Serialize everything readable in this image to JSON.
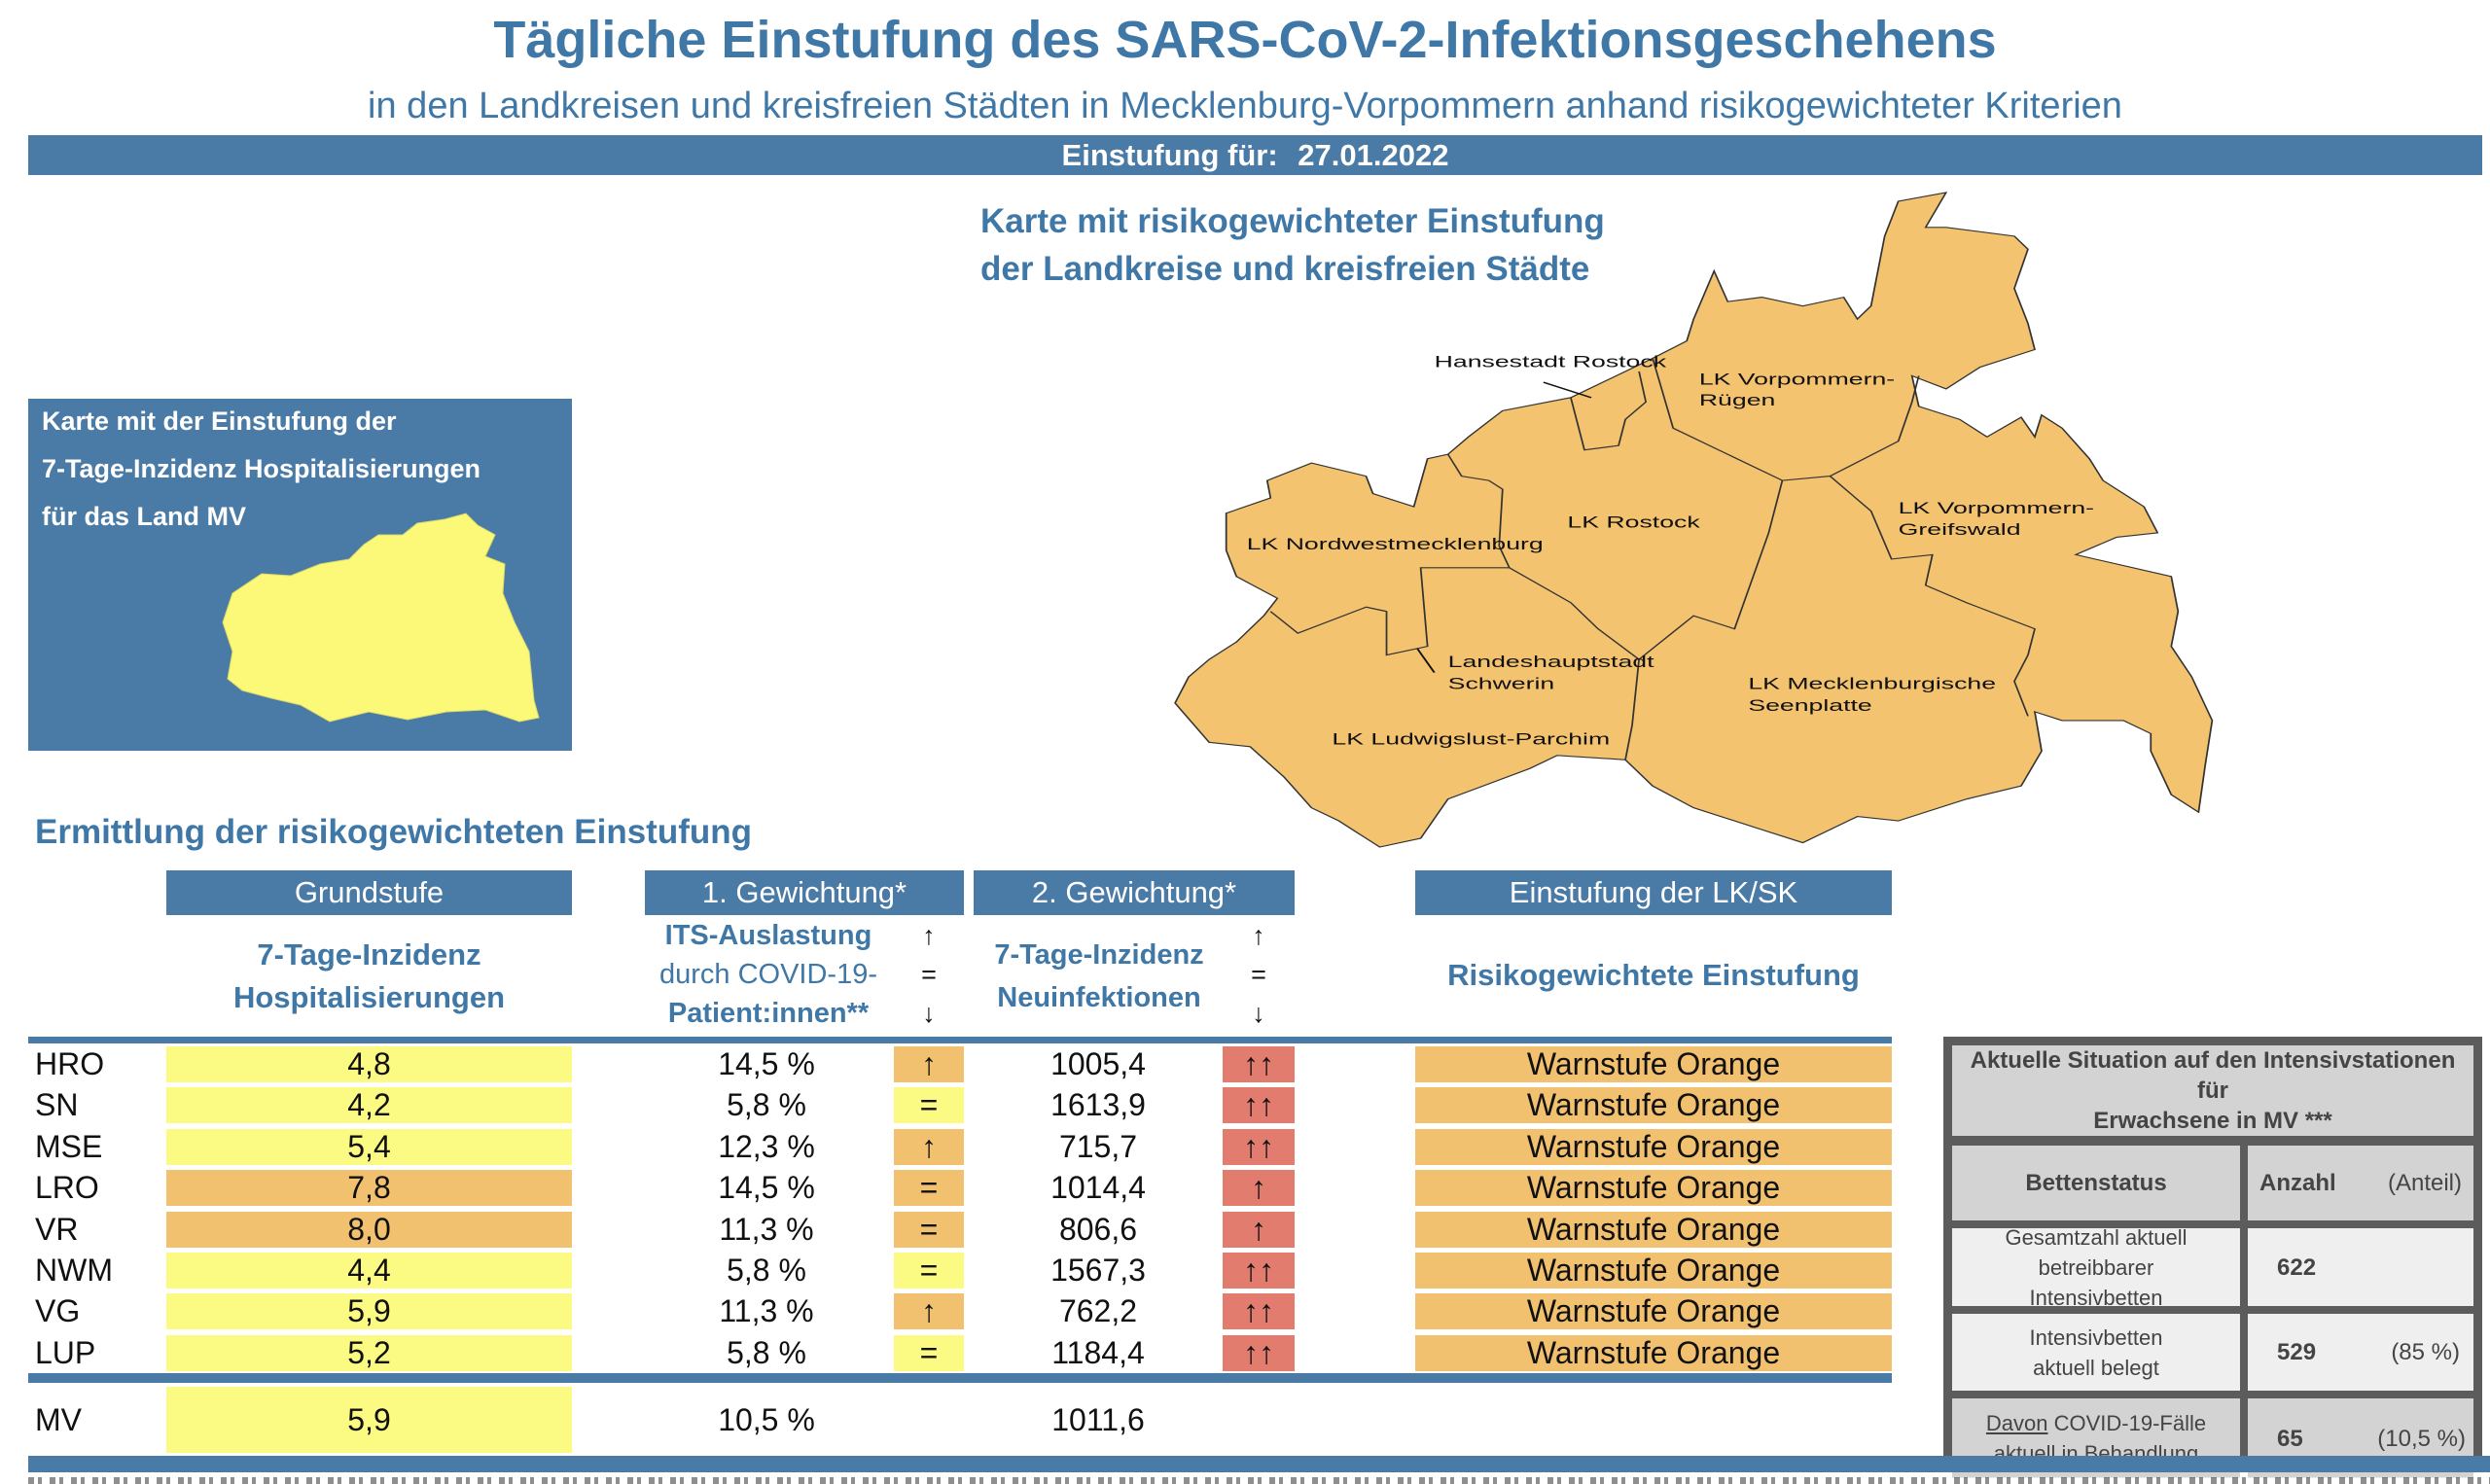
{
  "header": {
    "title": "Tägliche Einstufung des SARS-CoV-2-Infektionsgeschehens",
    "subtitle": "in den Landkreisen und kreisfreien Städten in Mecklenburg-Vorpommern anhand risikogewichteter Kriterien",
    "date_label": "Einstufung für:",
    "date_value": "27.01.2022"
  },
  "mini_map": {
    "line1": "Karte mit der Einstufung der",
    "line2": "7-Tage-Inzidenz Hospitalisierungen",
    "line3": "für das Land MV"
  },
  "map": {
    "title_line1": "Karte mit risikogewichteter Einstufung",
    "title_line2": "der Landkreise und kreisfreien Städte",
    "labels": {
      "hro": "Hansestadt Rostock",
      "vr1": "LK Vorpommern-",
      "vr2": "Rügen",
      "lro": "LK Rostock",
      "nwm": "LK Nordwestmecklenburg",
      "vg1": "LK Vorpommern-",
      "vg2": "Greifswald",
      "sn1": "Landeshauptstadt",
      "sn2": "Schwerin",
      "mse1": "LK Mecklenburgische",
      "mse2": "Seenplatte",
      "lup": "LK Ludwigslust-Parchim"
    },
    "fill_color": "#f3c36f"
  },
  "table": {
    "section_title": "Ermittlung der risikogewichteten Einstufung",
    "headers": {
      "grundstufe": "Grundstufe",
      "gew1": "1. Gewichtung*",
      "gew2": "2. Gewichtung*",
      "einstufung": "Einstufung der LK/SK"
    },
    "subheaders": {
      "grund_l1": "7-Tage-Inzidenz",
      "grund_l2": "Hospitalisierungen",
      "gew1_l1": "ITS-Auslastung",
      "gew1_l2": "durch COVID-19-",
      "gew1_l3": "Patient:innen**",
      "gew2_l1": "7-Tage-Inzidenz",
      "gew2_l2": "Neuinfektionen",
      "einstufung": "Risikogewichtete Einstufung",
      "arrow_up": "↑",
      "arrow_eq": "=",
      "arrow_down": "↓"
    },
    "rows": [
      {
        "region": "HRO",
        "hosp": "4,8",
        "hosp_level": "yellow",
        "its": "14,5 %",
        "its_trend": "↑",
        "its_level": "orange",
        "inz": "1005,4",
        "inz_trend": "↑↑",
        "inz_level": "red",
        "result": "Warnstufe Orange"
      },
      {
        "region": "SN",
        "hosp": "4,2",
        "hosp_level": "yellow",
        "its": "5,8 %",
        "its_trend": "=",
        "its_level": "yellow",
        "inz": "1613,9",
        "inz_trend": "↑↑",
        "inz_level": "red",
        "result": "Warnstufe Orange"
      },
      {
        "region": "MSE",
        "hosp": "5,4",
        "hosp_level": "yellow",
        "its": "12,3 %",
        "its_trend": "↑",
        "its_level": "orange",
        "inz": "715,7",
        "inz_trend": "↑↑",
        "inz_level": "red",
        "result": "Warnstufe Orange"
      },
      {
        "region": "LRO",
        "hosp": "7,8",
        "hosp_level": "orange",
        "its": "14,5 %",
        "its_trend": "=",
        "its_level": "orange",
        "inz": "1014,4",
        "inz_trend": "↑",
        "inz_level": "red",
        "result": "Warnstufe Orange"
      },
      {
        "region": "VR",
        "hosp": "8,0",
        "hosp_level": "orange",
        "its": "11,3 %",
        "its_trend": "=",
        "its_level": "orange",
        "inz": "806,6",
        "inz_trend": "↑",
        "inz_level": "red",
        "result": "Warnstufe Orange"
      },
      {
        "region": "NWM",
        "hosp": "4,4",
        "hosp_level": "yellow",
        "its": "5,8 %",
        "its_trend": "=",
        "its_level": "yellow",
        "inz": "1567,3",
        "inz_trend": "↑↑",
        "inz_level": "red",
        "result": "Warnstufe Orange"
      },
      {
        "region": "VG",
        "hosp": "5,9",
        "hosp_level": "yellow",
        "its": "11,3 %",
        "its_trend": "↑",
        "its_level": "orange",
        "inz": "762,2",
        "inz_trend": "↑↑",
        "inz_level": "red",
        "result": "Warnstufe Orange"
      },
      {
        "region": "LUP",
        "hosp": "5,2",
        "hosp_level": "yellow",
        "its": "5,8 %",
        "its_trend": "=",
        "its_level": "yellow",
        "inz": "1184,4",
        "inz_trend": "↑↑",
        "inz_level": "red",
        "result": "Warnstufe Orange"
      }
    ],
    "total": {
      "region": "MV",
      "hosp": "5,9",
      "hosp_level": "yellow",
      "its": "10,5 %",
      "inz": "1011,6"
    }
  },
  "icu": {
    "title_l1": "Aktuelle Situation auf den Intensivstationen für",
    "title_l2": "Erwachsene in MV ***",
    "col_status": "Bettenstatus",
    "col_count": "Anzahl",
    "col_share": "(Anteil)",
    "rows": [
      {
        "l1": "Gesamtzahl aktuell betreibbarer",
        "l2": "Intensivbetten",
        "count": "622",
        "share": ""
      },
      {
        "l1": "Intensivbetten",
        "l2": "aktuell belegt",
        "count": "529",
        "share": "(85 %)"
      },
      {
        "l1_u": "Davon",
        "l1": " COVID-19-Fälle",
        "l2": "aktuell in Behandlung",
        "count": "65",
        "share": "(10,5 %)"
      }
    ]
  },
  "colors": {
    "accent": "#4a7aa6",
    "title": "#3f77a6",
    "yellow": "#fbfa82",
    "orange": "#f2c170",
    "red": "#e27c6e"
  }
}
